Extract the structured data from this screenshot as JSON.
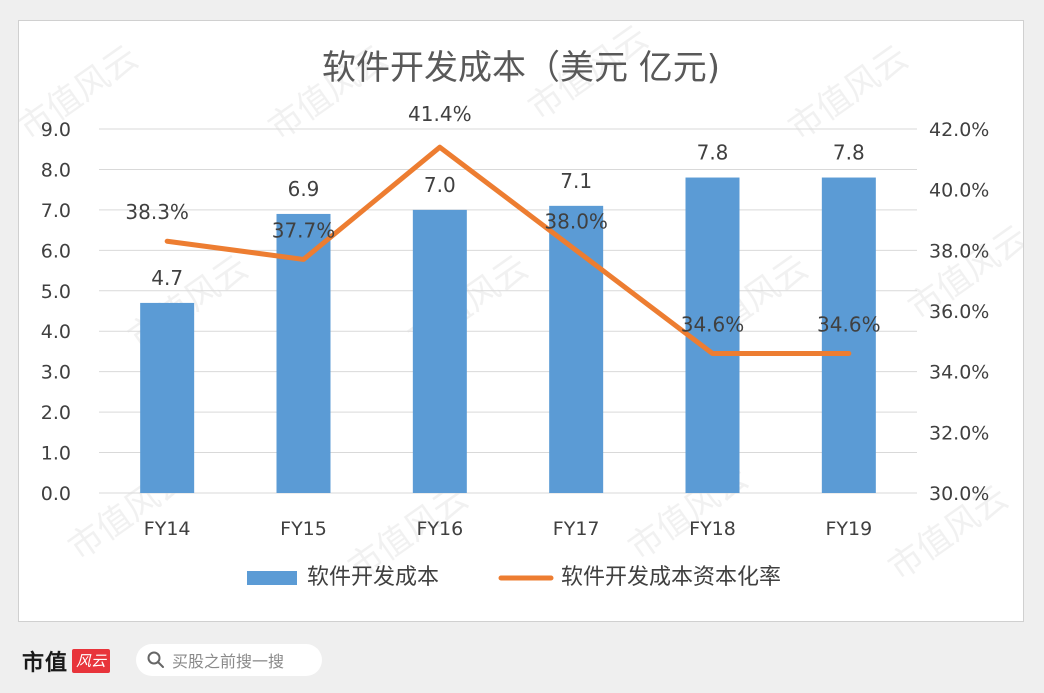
{
  "footer": {
    "brand_name": "市值",
    "brand_logo_text": "风云",
    "search_placeholder": "买股之前搜一搜"
  },
  "watermark_text": "市值风云",
  "colors": {
    "bar": "#5b9bd5",
    "line": "#ed7d31",
    "grid": "#d9d9d9",
    "text": "#404040"
  },
  "chart_data": {
    "type": "bar",
    "title": "软件开发成本（美元 亿元)",
    "categories": [
      "FY14",
      "FY15",
      "FY16",
      "FY17",
      "FY18",
      "FY19"
    ],
    "series": [
      {
        "name": "软件开发成本",
        "type": "bar",
        "axis": "left",
        "values": [
          4.7,
          6.9,
          7.0,
          7.1,
          7.8,
          7.8
        ],
        "labels": [
          "4.7",
          "6.9",
          "7.0",
          "7.1",
          "7.8",
          "7.8"
        ]
      },
      {
        "name": "软件开发成本资本化率",
        "type": "line",
        "axis": "right",
        "values": [
          38.3,
          37.7,
          41.4,
          38.0,
          34.6,
          34.6
        ],
        "labels": [
          "38.3%",
          "37.7%",
          "41.4%",
          "38.0%",
          "34.6%",
          "34.6%"
        ]
      }
    ],
    "y_left": {
      "ylim": [
        0,
        9
      ],
      "ticks": [
        "0.0",
        "1.0",
        "2.0",
        "3.0",
        "4.0",
        "5.0",
        "6.0",
        "7.0",
        "8.0",
        "9.0"
      ]
    },
    "y_right": {
      "ylim": [
        30,
        42
      ],
      "ticks": [
        "30.0%",
        "32.0%",
        "34.0%",
        "36.0%",
        "38.0%",
        "40.0%",
        "42.0%"
      ]
    },
    "grid": true,
    "legend_position": "bottom"
  }
}
